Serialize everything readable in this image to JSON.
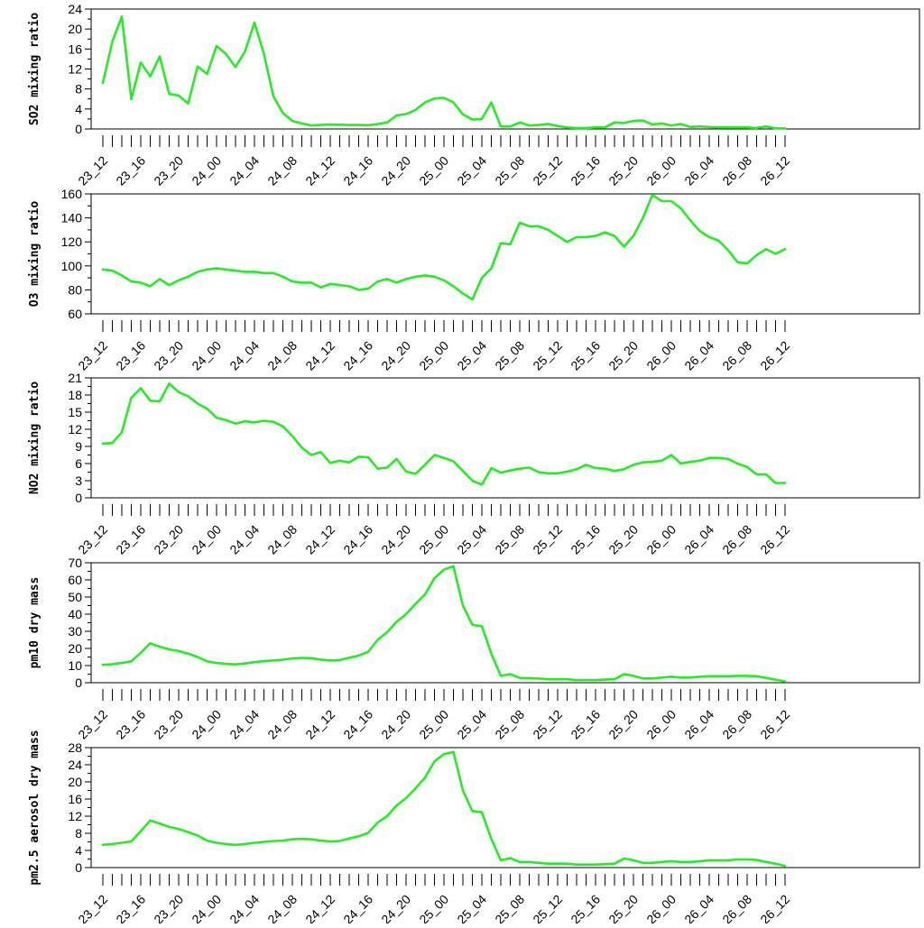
{
  "theme": {
    "line_color": "#22ee22",
    "axis_color": "#000000",
    "background": "#ffffff"
  },
  "shared_x": {
    "labels": [
      "23_12",
      "23_16",
      "23_20",
      "24_00",
      "24_04",
      "24_08",
      "24_12",
      "24_16",
      "24_20",
      "25_00",
      "25_04",
      "25_08",
      "25_12",
      "25_16",
      "25_20",
      "26_00",
      "26_04",
      "26_08",
      "26_12"
    ],
    "points": 73
  },
  "chart_data": [
    {
      "type": "line",
      "ylabel": "SO2 mixing ratio",
      "ylim": [
        0,
        24
      ],
      "yticks": [
        0,
        4,
        8,
        12,
        16,
        20,
        24
      ],
      "values": [
        9.2,
        17.5,
        22.5,
        6.0,
        13.3,
        10.5,
        14.5,
        7.0,
        6.7,
        5.1,
        12.5,
        11.0,
        16.6,
        15.0,
        12.4,
        15.5,
        21.3,
        15.0,
        6.5,
        3.2,
        1.6,
        1.1,
        0.7,
        0.8,
        0.9,
        0.85,
        0.8,
        0.8,
        0.75,
        1.0,
        1.3,
        2.7,
        3.0,
        3.8,
        5.3,
        6.1,
        6.2,
        5.3,
        2.9,
        1.9,
        2.0,
        5.3,
        0.5,
        0.5,
        1.3,
        0.7,
        0.8,
        1.0,
        0.6,
        0.3,
        0.2,
        0.2,
        0.3,
        0.3,
        1.3,
        1.2,
        1.6,
        1.7,
        0.9,
        1.1,
        0.7,
        1.0,
        0.4,
        0.5,
        0.4,
        0.3,
        0.3,
        0.3,
        0.3,
        0.2,
        0.5,
        0.1,
        0.1
      ]
    },
    {
      "type": "line",
      "ylabel": "O3 mixing ratio",
      "ylim": [
        60,
        160
      ],
      "yticks": [
        60,
        80,
        100,
        120,
        140,
        160
      ],
      "values": [
        97,
        96,
        92,
        87,
        86,
        83,
        89,
        84,
        88,
        91,
        95,
        97,
        98,
        97,
        96,
        95,
        95,
        94,
        94,
        91,
        87,
        86,
        86,
        82,
        85,
        84,
        83,
        80,
        81,
        87,
        89,
        86,
        89,
        91,
        92,
        91,
        88,
        83,
        77,
        72,
        90,
        98,
        119,
        118,
        136,
        133,
        133,
        130,
        125,
        120,
        124,
        124,
        125,
        128,
        125,
        116,
        125,
        140,
        159,
        154,
        154,
        148,
        138,
        129,
        124,
        121,
        113,
        103,
        102,
        109,
        114,
        110,
        114
      ]
    },
    {
      "type": "line",
      "ylabel": "NO2 mixing ratio",
      "ylim": [
        0,
        21
      ],
      "yticks": [
        0,
        3,
        6,
        9,
        12,
        15,
        18,
        21
      ],
      "values": [
        9.5,
        9.6,
        11.5,
        17.5,
        19.2,
        17.0,
        16.9,
        20.0,
        18.5,
        17.8,
        16.5,
        15.6,
        14.0,
        13.6,
        13.0,
        13.4,
        13.2,
        13.5,
        13.3,
        12.5,
        10.8,
        8.8,
        7.5,
        8.0,
        6.1,
        6.5,
        6.2,
        7.2,
        7.1,
        5.1,
        5.3,
        6.8,
        4.6,
        4.2,
        5.8,
        7.5,
        7.0,
        6.4,
        4.7,
        3.0,
        2.3,
        5.2,
        4.4,
        4.8,
        5.1,
        5.3,
        4.5,
        4.3,
        4.3,
        4.6,
        5.0,
        5.8,
        5.2,
        5.1,
        4.7,
        5.0,
        5.8,
        6.2,
        6.3,
        6.5,
        7.5,
        6.0,
        6.3,
        6.5,
        7.0,
        7.0,
        6.8,
        6.0,
        5.4,
        4.1,
        4.1,
        2.6,
        2.6
      ]
    },
    {
      "type": "line",
      "ylabel": "pm10 dry mass",
      "ylim": [
        0,
        70
      ],
      "yticks": [
        0,
        10,
        20,
        30,
        40,
        50,
        60,
        70
      ],
      "values": [
        10.4,
        10.8,
        11.5,
        12.5,
        17.5,
        23.0,
        21.0,
        19.5,
        18.5,
        17.0,
        15.0,
        12.5,
        11.5,
        11.0,
        10.7,
        11.2,
        12.0,
        12.6,
        13.0,
        13.4,
        14.2,
        14.5,
        14.3,
        13.5,
        13.0,
        13.2,
        14.6,
        15.8,
        18.0,
        25.0,
        29.5,
        35.5,
        40.0,
        46.0,
        51.5,
        61.0,
        66.0,
        68.0,
        45.0,
        33.8,
        33.0,
        17.0,
        4.0,
        5.0,
        2.8,
        2.7,
        2.4,
        2.0,
        2.0,
        2.0,
        1.5,
        1.6,
        1.6,
        1.8,
        2.0,
        5.0,
        4.0,
        2.5,
        2.5,
        3.0,
        3.5,
        3.0,
        3.0,
        3.5,
        3.8,
        3.8,
        3.8,
        4.0,
        4.0,
        3.8,
        2.8,
        1.8,
        0.8
      ]
    },
    {
      "type": "line",
      "ylabel": "pm2.5 aerosol dry mass",
      "ylim": [
        0,
        28
      ],
      "yticks": [
        0,
        4,
        8,
        12,
        16,
        20,
        24,
        28
      ],
      "values": [
        5.3,
        5.5,
        5.8,
        6.1,
        8.5,
        11.0,
        10.3,
        9.5,
        9.0,
        8.3,
        7.5,
        6.3,
        5.8,
        5.5,
        5.3,
        5.5,
        5.8,
        6.0,
        6.2,
        6.3,
        6.6,
        6.7,
        6.6,
        6.3,
        6.1,
        6.2,
        6.8,
        7.3,
        8.1,
        10.5,
        12.0,
        14.5,
        16.2,
        18.5,
        21.0,
        24.8,
        26.5,
        27.0,
        18.0,
        13.2,
        12.9,
        6.7,
        1.7,
        2.2,
        1.3,
        1.3,
        1.1,
        0.9,
        0.9,
        0.9,
        0.7,
        0.7,
        0.7,
        0.8,
        0.9,
        2.1,
        1.7,
        1.1,
        1.1,
        1.3,
        1.5,
        1.3,
        1.3,
        1.5,
        1.7,
        1.7,
        1.7,
        1.9,
        1.9,
        1.8,
        1.3,
        0.9,
        0.4
      ]
    }
  ]
}
